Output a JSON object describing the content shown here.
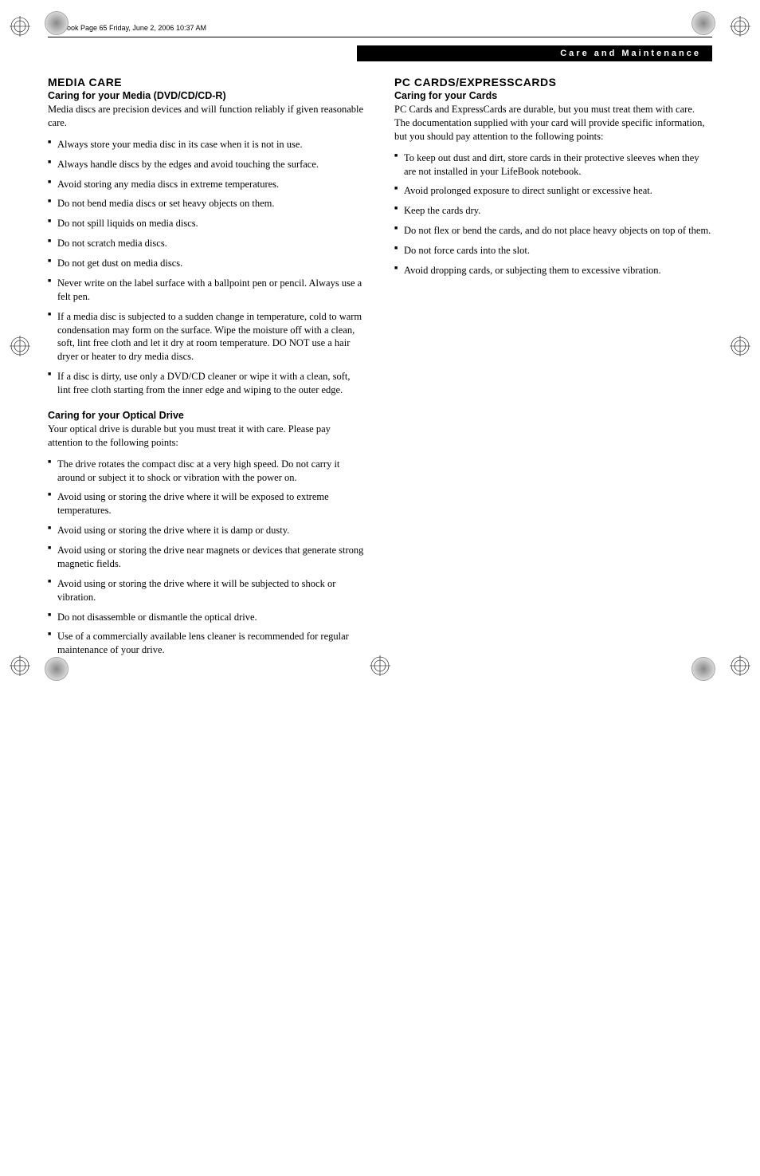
{
  "meta": {
    "header_line": "elas.book  Page 65  Friday, June 2, 2006  10:37 AM",
    "header_bar": "Care and Maintenance",
    "page_number": "65"
  },
  "left": {
    "section_heading": "MEDIA CARE",
    "sub1_heading": "Caring for your Media (DVD/CD/CD-R)",
    "sub1_intro": "Media discs are precision devices and will function reliably if given reasonable care.",
    "sub1_bullets": [
      "Always store your media disc in its case when it is not in use.",
      "Always handle discs by the edges and avoid touching the surface.",
      "Avoid storing any media discs in extreme temperatures.",
      "Do not bend media discs or set heavy objects on them.",
      "Do not spill liquids on media discs.",
      "Do not scratch media discs.",
      "Do not get dust on media discs.",
      "Never write on the label surface with a ballpoint pen or pencil. Always use a felt pen.",
      "If a media disc is subjected to a sudden change in temperature, cold to warm condensation may form on the surface. Wipe the moisture off with a clean, soft, lint free cloth and let it dry at room temperature. DO NOT use a hair dryer or heater to dry media discs.",
      "If a disc is dirty, use only a DVD/CD cleaner or wipe it with a clean, soft, lint free cloth starting from the inner edge and wiping to the outer edge."
    ],
    "sub2_heading": "Caring for your Optical Drive",
    "sub2_intro": "Your optical drive is durable but you must treat it with care. Please pay attention to the following points:",
    "sub2_bullets": [
      "The drive rotates the compact disc at a very high speed. Do not carry it around or subject it to shock or vibration with the power on.",
      "Avoid using or storing the drive where it will be exposed to extreme temperatures.",
      "Avoid using or storing the drive where it is damp or dusty.",
      "Avoid using or storing the drive near magnets or devices that generate strong magnetic fields.",
      "Avoid using or storing the drive where it will be subjected to shock or vibration.",
      "Do not disassemble or dismantle the optical drive.",
      "Use of a commercially available lens cleaner is recommended for regular maintenance of your drive."
    ]
  },
  "right": {
    "section_heading": "PC CARDS/EXPRESSCARDS",
    "sub1_heading": "Caring for your Cards",
    "sub1_intro": "PC Cards and ExpressCards are durable, but you must treat them with care. The documentation supplied with your card will provide specific information, but you should pay attention to the following points:",
    "sub1_bullets": [
      "To keep out dust and dirt, store cards in their protective sleeves when they are not installed in your LifeBook notebook.",
      "Avoid prolonged exposure to direct sunlight or excessive heat.",
      "Keep the cards dry.",
      "Do not flex or bend the cards, and do not place heavy objects on top of them.",
      "Do not force cards into the slot.",
      "Avoid dropping cards, or subjecting them to excessive vibration."
    ]
  }
}
